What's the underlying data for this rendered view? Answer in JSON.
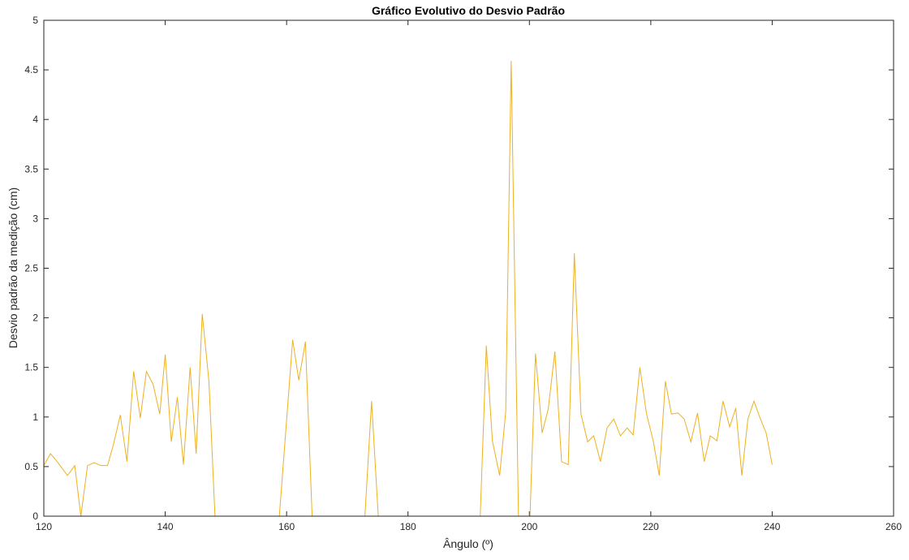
{
  "chart_data": {
    "type": "line",
    "title": "Gráfico Evolutivo do Desvio Padrão",
    "xlabel": "Ângulo (º)",
    "ylabel": "Desvio padrão da medição (cm)",
    "xlim": [
      120,
      260
    ],
    "ylim": [
      0,
      5
    ],
    "xticks": [
      120,
      140,
      160,
      180,
      200,
      220,
      240,
      260
    ],
    "yticks": [
      0,
      0.5,
      1,
      1.5,
      2,
      2.5,
      3,
      3.5,
      4,
      4.5,
      5
    ],
    "grid": false,
    "box": true,
    "series": [
      {
        "color": "#EDB120",
        "points": [
          [
            120,
            0.51
          ],
          [
            121.1,
            0.63
          ],
          [
            122.2,
            0.55
          ],
          [
            123.9,
            0.41
          ],
          [
            125.1,
            0.51
          ],
          [
            126.1,
            0.0
          ],
          [
            127.2,
            0.51
          ],
          [
            128.3,
            0.54
          ],
          [
            129.4,
            0.51
          ],
          [
            130.5,
            0.51
          ],
          [
            131.5,
            0.73
          ],
          [
            132.6,
            1.02
          ],
          [
            133.7,
            0.55
          ],
          [
            134.8,
            1.46
          ],
          [
            135.9,
            0.99
          ],
          [
            136.9,
            1.46
          ],
          [
            138.0,
            1.33
          ],
          [
            139.1,
            1.03
          ],
          [
            140.0,
            1.63
          ],
          [
            141.0,
            0.75
          ],
          [
            142.0,
            1.2
          ],
          [
            143.0,
            0.52
          ],
          [
            144.1,
            1.5
          ],
          [
            145.1,
            0.63
          ],
          [
            146.1,
            2.04
          ],
          [
            147.2,
            1.36
          ],
          [
            148.2,
            0.0
          ],
          [
            158.8,
            0.0
          ],
          [
            161.0,
            1.78
          ],
          [
            162.0,
            1.37
          ],
          [
            163.1,
            1.76
          ],
          [
            164.2,
            0.0
          ],
          [
            172.9,
            0.0
          ],
          [
            174.0,
            1.16
          ],
          [
            175.1,
            0.0
          ],
          [
            191.9,
            0.0
          ],
          [
            192.9,
            1.72
          ],
          [
            193.9,
            0.76
          ],
          [
            195.1,
            0.41
          ],
          [
            196.1,
            1.05
          ],
          [
            197.0,
            4.59
          ],
          [
            198.2,
            0.0
          ],
          [
            200.1,
            0.0
          ],
          [
            201.0,
            1.64
          ],
          [
            202.1,
            0.84
          ],
          [
            203.1,
            1.08
          ],
          [
            204.2,
            1.66
          ],
          [
            205.3,
            0.55
          ],
          [
            206.4,
            0.52
          ],
          [
            207.4,
            2.65
          ],
          [
            208.5,
            1.03
          ],
          [
            209.6,
            0.75
          ],
          [
            210.6,
            0.81
          ],
          [
            211.7,
            0.55
          ],
          [
            212.8,
            0.89
          ],
          [
            213.9,
            0.98
          ],
          [
            215.0,
            0.81
          ],
          [
            216.1,
            0.89
          ],
          [
            217.1,
            0.82
          ],
          [
            218.2,
            1.5
          ],
          [
            219.3,
            1.03
          ],
          [
            220.4,
            0.76
          ],
          [
            221.4,
            0.41
          ],
          [
            222.4,
            1.36
          ],
          [
            223.4,
            1.03
          ],
          [
            224.5,
            1.04
          ],
          [
            225.5,
            0.98
          ],
          [
            226.6,
            0.75
          ],
          [
            227.7,
            1.04
          ],
          [
            228.8,
            0.55
          ],
          [
            229.8,
            0.81
          ],
          [
            230.9,
            0.76
          ],
          [
            231.9,
            1.16
          ],
          [
            233.0,
            0.9
          ],
          [
            234.0,
            1.09
          ],
          [
            235.0,
            0.41
          ],
          [
            236.0,
            0.98
          ],
          [
            237.0,
            1.16
          ],
          [
            238.0,
            0.99
          ],
          [
            239.0,
            0.84
          ],
          [
            240.0,
            0.52
          ]
        ]
      }
    ]
  }
}
